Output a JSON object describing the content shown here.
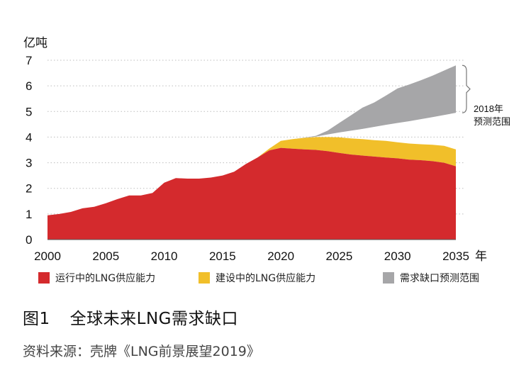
{
  "chart_data": {
    "type": "area",
    "y_unit_label": "亿吨",
    "x_unit_label": "年",
    "xlim": [
      2000,
      2035
    ],
    "ylim": [
      0,
      7
    ],
    "x_ticks": [
      2000,
      2005,
      2010,
      2015,
      2020,
      2025,
      2030,
      2035
    ],
    "y_ticks": [
      0,
      1,
      2,
      3,
      4,
      5,
      6,
      7
    ],
    "grid": "horizontal-dotted",
    "series": [
      {
        "name": "运行中的LNG供应能力",
        "color": "#d42a2d",
        "x": [
          2000,
          2001,
          2002,
          2003,
          2004,
          2005,
          2006,
          2007,
          2008,
          2009,
          2010,
          2011,
          2012,
          2013,
          2014,
          2015,
          2016,
          2017,
          2018,
          2019,
          2020,
          2021,
          2022,
          2023,
          2024,
          2025,
          2026,
          2027,
          2028,
          2029,
          2030,
          2031,
          2032,
          2033,
          2034,
          2035
        ],
        "values": [
          0.95,
          1.0,
          1.08,
          1.22,
          1.28,
          1.42,
          1.58,
          1.72,
          1.72,
          1.82,
          2.22,
          2.4,
          2.38,
          2.38,
          2.42,
          2.5,
          2.65,
          2.95,
          3.2,
          3.48,
          3.58,
          3.55,
          3.52,
          3.5,
          3.45,
          3.38,
          3.32,
          3.28,
          3.24,
          3.2,
          3.17,
          3.12,
          3.1,
          3.06,
          3.0,
          2.86
        ]
      },
      {
        "name": "建设中的LNG供应能力",
        "color": "#f1bf2a",
        "x": [
          2018,
          2019,
          2020,
          2021,
          2022,
          2023,
          2024,
          2025,
          2026,
          2027,
          2028,
          2029,
          2030,
          2031,
          2032,
          2033,
          2034,
          2035
        ],
        "values": [
          3.2,
          3.55,
          3.85,
          3.92,
          3.97,
          4.0,
          4.0,
          3.99,
          3.95,
          3.92,
          3.88,
          3.85,
          3.8,
          3.75,
          3.72,
          3.7,
          3.66,
          3.52
        ]
      },
      {
        "name": "需求缺口预测范围",
        "color": "#a6a6a8",
        "x": [
          2021,
          2022,
          2023,
          2024,
          2025,
          2026,
          2027,
          2028,
          2029,
          2030,
          2031,
          2032,
          2033,
          2034,
          2035
        ],
        "values_low": [
          3.92,
          3.97,
          4.02,
          4.1,
          4.18,
          4.25,
          4.32,
          4.4,
          4.48,
          4.55,
          4.62,
          4.7,
          4.78,
          4.86,
          4.95
        ],
        "values_high": [
          3.92,
          3.98,
          4.05,
          4.25,
          4.55,
          4.85,
          5.15,
          5.35,
          5.62,
          5.9,
          6.05,
          6.22,
          6.4,
          6.6,
          6.8
        ]
      }
    ],
    "annotation": {
      "line1": "2018年",
      "line2": "预测范围",
      "from": 4.95,
      "to": 6.8
    },
    "legend_placement": "bottom"
  },
  "caption": {
    "figure_number": "图1",
    "title": "全球未来LNG需求缺口",
    "source": "资料来源：壳牌《LNG前景展望2019》"
  }
}
